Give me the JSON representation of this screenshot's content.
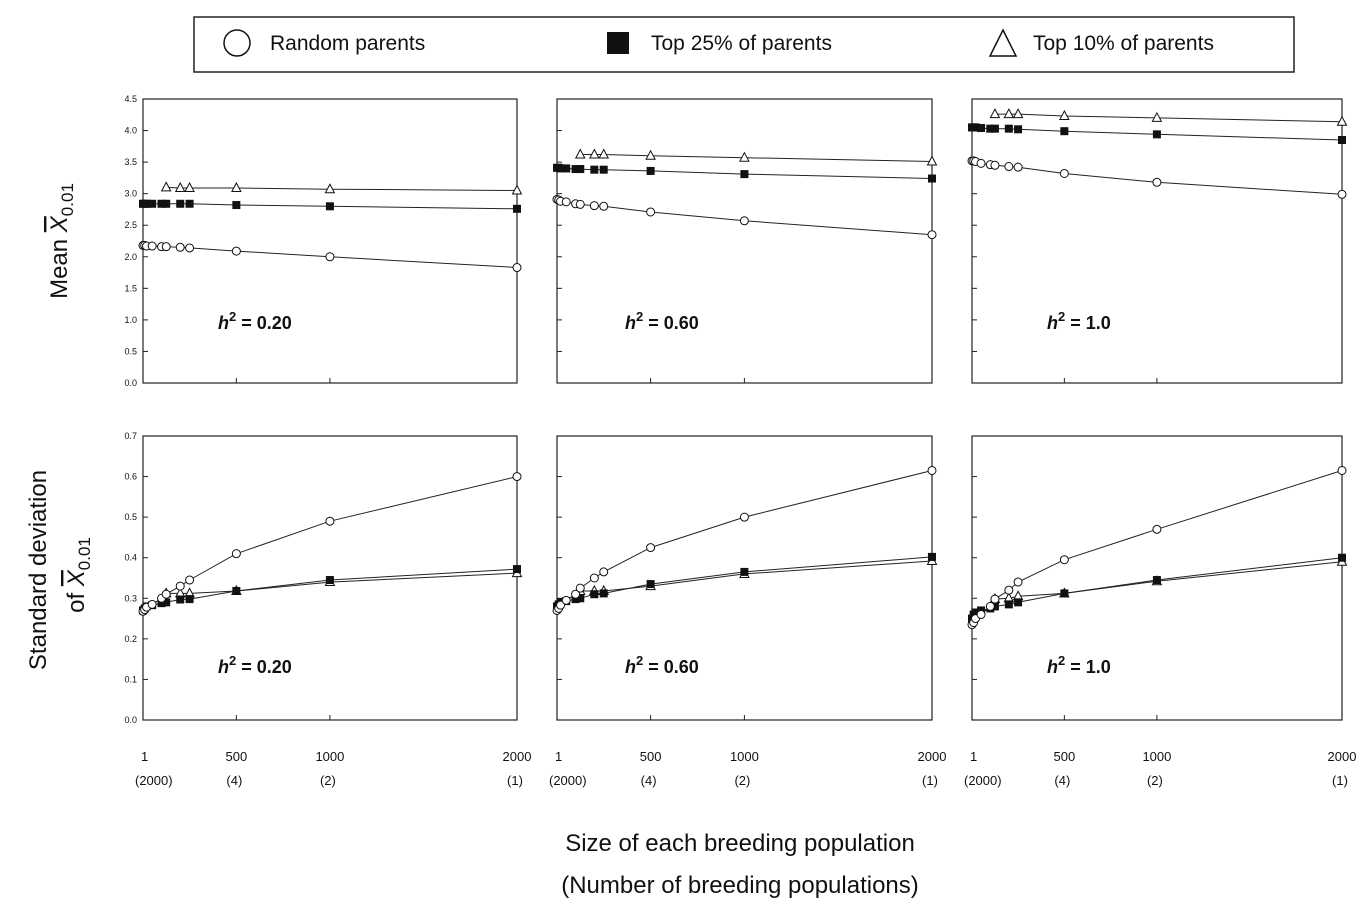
{
  "legend": [
    {
      "marker": "circle-open",
      "label": "Random parents"
    },
    {
      "marker": "square-filled",
      "label": "Top 25% of parents"
    },
    {
      "marker": "triangle-open",
      "label": "Top 10% of parents"
    }
  ],
  "ylabels": {
    "top": {
      "prefix": "Mean ",
      "symbol": "X",
      "subscript": "0.01"
    },
    "bottom": {
      "line1": "Standard deviation",
      "prefix": "of ",
      "symbol": "X",
      "subscript": "0.01"
    }
  },
  "xlabel": {
    "line1": "Size of each breeding population",
    "line2": "(Number of breeding populations)"
  },
  "x_ticks": [
    {
      "size": 1,
      "label": "1",
      "sub": "(2000)"
    },
    {
      "size": 500,
      "label": "500",
      "sub": "(4)"
    },
    {
      "size": 1000,
      "label": "1000",
      "sub": "(2)"
    },
    {
      "size": 2000,
      "label": "2000",
      "sub": "(1)"
    }
  ],
  "chart_data": [
    {
      "type": "line",
      "panel": "mean-h2-0.20",
      "annotation": {
        "base": "h",
        "sup": "2",
        "rest": " = 0.20"
      },
      "ylim": [
        0,
        4.5
      ],
      "yticks": [
        "0.0",
        "0.5",
        "1.0",
        "1.5",
        "2.0",
        "2.5",
        "3.0",
        "3.5",
        "4.0",
        "4.5"
      ],
      "x": [
        1,
        10,
        20,
        50,
        100,
        125,
        200,
        250,
        500,
        1000,
        2000
      ],
      "series": [
        {
          "marker": "circle-open",
          "values": [
            2.18,
            2.18,
            2.17,
            2.17,
            2.16,
            2.16,
            2.15,
            2.14,
            2.09,
            2.0,
            1.83
          ]
        },
        {
          "marker": "square-filled",
          "values": [
            2.84,
            2.84,
            2.84,
            2.84,
            2.84,
            2.84,
            2.84,
            2.84,
            2.82,
            2.8,
            2.76
          ]
        },
        {
          "marker": "triangle-open",
          "values": [
            null,
            null,
            null,
            null,
            null,
            3.1,
            3.09,
            3.09,
            3.09,
            3.07,
            3.05
          ]
        }
      ]
    },
    {
      "type": "line",
      "panel": "mean-h2-0.60",
      "annotation": {
        "base": "h",
        "sup": "2",
        "rest": " = 0.60"
      },
      "ylim": [
        0,
        4.5
      ],
      "yticks": [],
      "x": [
        1,
        10,
        20,
        50,
        100,
        125,
        200,
        250,
        500,
        1000,
        2000
      ],
      "series": [
        {
          "marker": "circle-open",
          "values": [
            2.91,
            2.9,
            2.88,
            2.87,
            2.84,
            2.83,
            2.81,
            2.8,
            2.71,
            2.57,
            2.35
          ]
        },
        {
          "marker": "square-filled",
          "values": [
            3.41,
            3.41,
            3.4,
            3.4,
            3.39,
            3.39,
            3.38,
            3.38,
            3.36,
            3.31,
            3.24
          ]
        },
        {
          "marker": "triangle-open",
          "values": [
            null,
            null,
            null,
            null,
            null,
            3.62,
            3.62,
            3.62,
            3.6,
            3.57,
            3.51
          ]
        }
      ]
    },
    {
      "type": "line",
      "panel": "mean-h2-1.0",
      "annotation": {
        "base": "h",
        "sup": "2",
        "rest": " = 1.0"
      },
      "ylim": [
        0,
        4.5
      ],
      "yticks": [],
      "x": [
        1,
        10,
        20,
        50,
        100,
        125,
        200,
        250,
        500,
        1000,
        2000
      ],
      "series": [
        {
          "marker": "circle-open",
          "values": [
            3.52,
            3.52,
            3.51,
            3.48,
            3.46,
            3.45,
            3.43,
            3.42,
            3.32,
            3.18,
            2.99
          ]
        },
        {
          "marker": "square-filled",
          "values": [
            4.05,
            4.05,
            4.05,
            4.04,
            4.03,
            4.03,
            4.03,
            4.02,
            3.99,
            3.94,
            3.85
          ]
        },
        {
          "marker": "triangle-open",
          "values": [
            null,
            null,
            null,
            null,
            null,
            4.26,
            4.26,
            4.26,
            4.23,
            4.2,
            4.14
          ]
        }
      ]
    },
    {
      "type": "line",
      "panel": "sd-h2-0.20",
      "annotation": {
        "base": "h",
        "sup": "2",
        "rest": " = 0.20"
      },
      "ylim": [
        0,
        0.7
      ],
      "yticks": [
        "0.0",
        "0.1",
        "0.2",
        "0.3",
        "0.4",
        "0.5",
        "0.6",
        "0.7"
      ],
      "x": [
        1,
        10,
        20,
        50,
        100,
        125,
        200,
        250,
        500,
        1000,
        2000
      ],
      "series": [
        {
          "marker": "circle-open",
          "values": [
            0.268,
            0.272,
            0.278,
            0.285,
            0.3,
            0.31,
            0.33,
            0.345,
            0.41,
            0.49,
            0.6
          ]
        },
        {
          "marker": "square-filled",
          "values": [
            0.27,
            0.275,
            0.28,
            0.283,
            0.288,
            0.29,
            0.297,
            0.298,
            0.318,
            0.345,
            0.372
          ]
        },
        {
          "marker": "triangle-open",
          "values": [
            null,
            null,
            null,
            null,
            null,
            0.312,
            0.312,
            0.312,
            0.318,
            0.34,
            0.362
          ]
        }
      ]
    },
    {
      "type": "line",
      "panel": "sd-h2-0.60",
      "annotation": {
        "base": "h",
        "sup": "2",
        "rest": " = 0.60"
      },
      "ylim": [
        0,
        0.7
      ],
      "yticks": [],
      "x": [
        1,
        10,
        20,
        50,
        100,
        125,
        200,
        250,
        500,
        1000,
        2000
      ],
      "series": [
        {
          "marker": "circle-open",
          "values": [
            0.27,
            0.275,
            0.283,
            0.295,
            0.31,
            0.325,
            0.35,
            0.365,
            0.425,
            0.5,
            0.615
          ]
        },
        {
          "marker": "square-filled",
          "values": [
            0.28,
            0.285,
            0.29,
            0.293,
            0.298,
            0.3,
            0.31,
            0.312,
            0.335,
            0.365,
            0.402
          ]
        },
        {
          "marker": "triangle-open",
          "values": [
            null,
            null,
            null,
            null,
            null,
            0.318,
            0.318,
            0.318,
            0.33,
            0.36,
            0.392
          ]
        }
      ]
    },
    {
      "type": "line",
      "panel": "sd-h2-1.0",
      "annotation": {
        "base": "h",
        "sup": "2",
        "rest": " = 1.0"
      },
      "ylim": [
        0,
        0.7
      ],
      "yticks": [],
      "x": [
        1,
        10,
        20,
        50,
        100,
        125,
        200,
        250,
        500,
        1000,
        2000
      ],
      "series": [
        {
          "marker": "circle-open",
          "values": [
            0.235,
            0.24,
            0.25,
            0.26,
            0.28,
            0.298,
            0.32,
            0.34,
            0.395,
            0.47,
            0.615
          ]
        },
        {
          "marker": "square-filled",
          "values": [
            0.25,
            0.26,
            0.265,
            0.27,
            0.275,
            0.28,
            0.285,
            0.29,
            0.312,
            0.345,
            0.4
          ]
        },
        {
          "marker": "triangle-open",
          "values": [
            null,
            null,
            null,
            null,
            null,
            0.298,
            0.3,
            0.305,
            0.312,
            0.342,
            0.39
          ]
        }
      ]
    }
  ]
}
